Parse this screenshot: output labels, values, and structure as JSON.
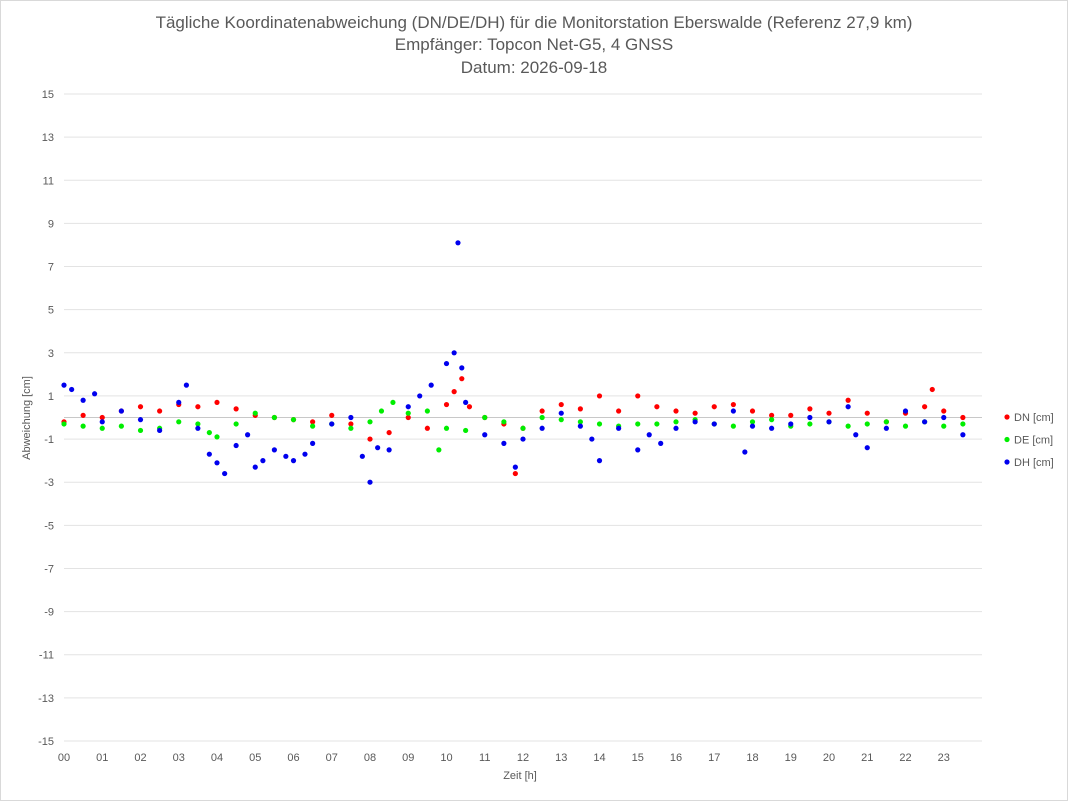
{
  "chart_data": {
    "type": "scatter",
    "title": "Tägliche Koordinatenabweichung (DN/DE/DH) für die Monitorstation Eberswalde (Referenz 27,9 km)",
    "subtitle": "Empfänger: Topcon Net-G5, 4 GNSS",
    "date_line": "Datum: 2026-09-18",
    "xlabel": "Zeit [h]",
    "ylabel": "Abweichung [cm]",
    "xlim": [
      0,
      24
    ],
    "ylim": [
      -15,
      15
    ],
    "y_ticks": [
      15,
      13,
      11,
      9,
      7,
      5,
      3,
      1,
      -1,
      -3,
      -5,
      -7,
      -9,
      -11,
      -13,
      -15
    ],
    "x_tick_labels": [
      "00",
      "01",
      "02",
      "03",
      "04",
      "05",
      "06",
      "07",
      "08",
      "09",
      "10",
      "11",
      "12",
      "13",
      "14",
      "15",
      "16",
      "17",
      "18",
      "19",
      "20",
      "21",
      "22",
      "23"
    ],
    "grid": true,
    "legend_position": "right",
    "series": [
      {
        "name": "DN [cm]",
        "color": "#ff0000",
        "x": [
          0,
          0.5,
          1,
          1.5,
          2,
          2.5,
          3,
          3.5,
          4,
          4.5,
          5,
          5.5,
          6,
          6.5,
          7,
          7.5,
          8,
          8.5,
          9,
          9.5,
          10,
          10.2,
          10.4,
          10.6,
          11,
          11.5,
          11.8,
          12,
          12.5,
          13,
          13.5,
          14,
          14.5,
          15,
          15.5,
          16,
          16.5,
          17,
          17.5,
          18,
          18.5,
          19,
          19.5,
          20,
          20.5,
          21,
          21.5,
          22,
          22.5,
          22.7,
          23,
          23.5
        ],
        "y": [
          -0.2,
          0.1,
          0.0,
          0.3,
          0.5,
          0.3,
          0.6,
          0.5,
          0.7,
          0.4,
          0.1,
          0.0,
          -0.1,
          -0.2,
          0.1,
          -0.3,
          -1.0,
          -0.7,
          0.0,
          -0.5,
          0.6,
          1.2,
          1.8,
          0.5,
          0.0,
          -0.3,
          -2.6,
          -0.5,
          0.3,
          0.6,
          0.4,
          1.0,
          0.3,
          1.0,
          0.5,
          0.3,
          0.2,
          0.5,
          0.6,
          0.3,
          0.1,
          0.1,
          0.4,
          0.2,
          0.8,
          0.2,
          -0.2,
          0.2,
          0.5,
          1.3,
          0.3,
          0.0
        ]
      },
      {
        "name": "DE [cm]",
        "color": "#00ee00",
        "x": [
          0,
          0.5,
          1,
          1.5,
          2,
          2.5,
          3,
          3.5,
          3.8,
          4,
          4.5,
          5,
          5.5,
          6,
          6.5,
          7,
          7.5,
          8,
          8.3,
          8.6,
          9,
          9.5,
          9.8,
          10,
          10.5,
          11,
          11.5,
          12,
          12.5,
          13,
          13.5,
          14,
          14.5,
          15,
          15.5,
          16,
          16.5,
          17,
          17.5,
          18,
          18.5,
          19,
          19.5,
          20,
          20.5,
          21,
          21.5,
          22,
          22.5,
          23,
          23.5
        ],
        "y": [
          -0.3,
          -0.4,
          -0.5,
          -0.4,
          -0.6,
          -0.5,
          -0.2,
          -0.3,
          -0.7,
          -0.9,
          -0.3,
          0.2,
          0.0,
          -0.1,
          -0.4,
          -0.3,
          -0.5,
          -0.2,
          0.3,
          0.7,
          0.2,
          0.3,
          -1.5,
          -0.5,
          -0.6,
          0.0,
          -0.2,
          -0.5,
          0.0,
          -0.1,
          -0.2,
          -0.3,
          -0.4,
          -0.3,
          -0.3,
          -0.2,
          -0.1,
          -0.3,
          -0.4,
          -0.2,
          -0.1,
          -0.4,
          -0.3,
          -0.2,
          -0.4,
          -0.3,
          -0.2,
          -0.4,
          -0.2,
          -0.4,
          -0.3
        ]
      },
      {
        "name": "DH [cm]",
        "color": "#0000ee",
        "x": [
          0,
          0.2,
          0.5,
          0.8,
          1,
          1.5,
          2,
          2.5,
          3,
          3.2,
          3.5,
          3.8,
          4,
          4.2,
          4.5,
          4.8,
          5,
          5.2,
          5.5,
          5.8,
          6,
          6.3,
          6.5,
          7,
          7.5,
          7.8,
          8,
          8.2,
          8.5,
          9,
          9.3,
          9.6,
          10,
          10.2,
          10.3,
          10.4,
          10.5,
          11,
          11.5,
          11.8,
          12,
          12.5,
          13,
          13.5,
          13.8,
          14,
          14.5,
          15,
          15.3,
          15.6,
          16,
          16.5,
          17,
          17.5,
          17.8,
          18,
          18.5,
          19,
          19.5,
          20,
          20.5,
          20.7,
          21,
          21.5,
          22,
          22.5,
          23,
          23.5
        ],
        "y": [
          1.5,
          1.3,
          0.8,
          1.1,
          -0.2,
          0.3,
          -0.1,
          -0.6,
          0.7,
          1.5,
          -0.5,
          -1.7,
          -2.1,
          -2.6,
          -1.3,
          -0.8,
          -2.3,
          -2.0,
          -1.5,
          -1.8,
          -2.0,
          -1.7,
          -1.2,
          -0.3,
          0.0,
          -1.8,
          -3.0,
          -1.4,
          -1.5,
          0.5,
          1.0,
          1.5,
          2.5,
          3.0,
          8.1,
          2.3,
          0.7,
          -0.8,
          -1.2,
          -2.3,
          -1.0,
          -0.5,
          0.2,
          -0.4,
          -1.0,
          -2.0,
          -0.5,
          -1.5,
          -0.8,
          -1.2,
          -0.5,
          -0.2,
          -0.3,
          0.3,
          -1.6,
          -0.4,
          -0.5,
          -0.3,
          0.0,
          -0.2,
          0.5,
          -0.8,
          -1.4,
          -0.5,
          0.3,
          -0.2,
          0.0,
          -0.8
        ]
      }
    ]
  }
}
